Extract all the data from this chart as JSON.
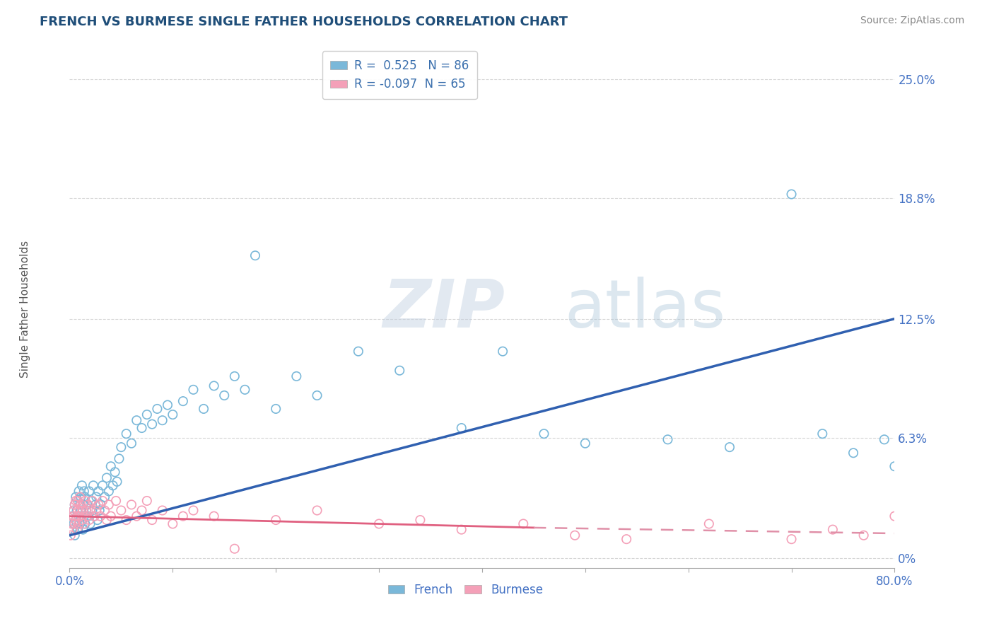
{
  "title": "FRENCH VS BURMESE SINGLE FATHER HOUSEHOLDS CORRELATION CHART",
  "source": "Source: ZipAtlas.com",
  "ylabel": "Single Father Households",
  "xlim": [
    0.0,
    0.8
  ],
  "ylim": [
    -0.005,
    0.265
  ],
  "yticks": [
    0.0,
    0.063,
    0.125,
    0.188,
    0.25
  ],
  "ytick_labels": [
    "0%",
    "6.3%",
    "12.5%",
    "18.8%",
    "25.0%"
  ],
  "xtick_labels_shown": [
    "0.0%",
    "80.0%"
  ],
  "xticks_shown": [
    0.0,
    0.8
  ],
  "french_color": "#7ab8d9",
  "burmese_color": "#f4a0b8",
  "french_R": 0.525,
  "french_N": 86,
  "burmese_R": -0.097,
  "burmese_N": 65,
  "watermark": "ZIPatlas",
  "title_color": "#1f4e79",
  "ylabel_color": "#555555",
  "tick_color": "#4472c4",
  "source_color": "#888888",
  "legend_R_color": "#3a6fad",
  "background_color": "#ffffff",
  "trend_french_color": "#3060b0",
  "trend_burmese_solid_color": "#e06080",
  "trend_burmese_dash_color": "#e090a8",
  "french_trend_x0": 0.0,
  "french_trend_x1": 0.8,
  "french_trend_y0": 0.012,
  "french_trend_y1": 0.125,
  "burmese_trend_x0": 0.0,
  "burmese_trend_x1": 0.45,
  "burmese_trend_x1_dash": 0.8,
  "burmese_trend_y0": 0.022,
  "burmese_trend_y1": 0.016,
  "burmese_trend_y1_dash": 0.013,
  "french_scatter_x": [
    0.002,
    0.003,
    0.004,
    0.004,
    0.005,
    0.005,
    0.006,
    0.006,
    0.007,
    0.007,
    0.008,
    0.008,
    0.009,
    0.009,
    0.01,
    0.01,
    0.011,
    0.011,
    0.012,
    0.012,
    0.013,
    0.013,
    0.014,
    0.014,
    0.015,
    0.015,
    0.016,
    0.017,
    0.018,
    0.019,
    0.02,
    0.021,
    0.022,
    0.023,
    0.024,
    0.025,
    0.026,
    0.027,
    0.028,
    0.029,
    0.03,
    0.032,
    0.034,
    0.036,
    0.038,
    0.04,
    0.042,
    0.044,
    0.046,
    0.048,
    0.05,
    0.055,
    0.06,
    0.065,
    0.07,
    0.075,
    0.08,
    0.085,
    0.09,
    0.095,
    0.1,
    0.11,
    0.12,
    0.13,
    0.14,
    0.15,
    0.16,
    0.17,
    0.18,
    0.2,
    0.22,
    0.24,
    0.28,
    0.32,
    0.38,
    0.42,
    0.46,
    0.5,
    0.58,
    0.64,
    0.7,
    0.73,
    0.76,
    0.79,
    0.8,
    0.81
  ],
  "french_scatter_y": [
    0.015,
    0.022,
    0.018,
    0.025,
    0.012,
    0.028,
    0.02,
    0.032,
    0.018,
    0.025,
    0.015,
    0.03,
    0.022,
    0.035,
    0.018,
    0.028,
    0.025,
    0.032,
    0.02,
    0.038,
    0.015,
    0.028,
    0.022,
    0.035,
    0.018,
    0.032,
    0.025,
    0.028,
    0.022,
    0.035,
    0.018,
    0.03,
    0.025,
    0.038,
    0.022,
    0.028,
    0.032,
    0.02,
    0.035,
    0.025,
    0.028,
    0.038,
    0.032,
    0.042,
    0.035,
    0.048,
    0.038,
    0.045,
    0.04,
    0.052,
    0.058,
    0.065,
    0.06,
    0.072,
    0.068,
    0.075,
    0.07,
    0.078,
    0.072,
    0.08,
    0.075,
    0.082,
    0.088,
    0.078,
    0.09,
    0.085,
    0.095,
    0.088,
    0.158,
    0.078,
    0.095,
    0.085,
    0.108,
    0.098,
    0.068,
    0.108,
    0.065,
    0.06,
    0.062,
    0.058,
    0.19,
    0.065,
    0.055,
    0.062,
    0.048,
    0.058
  ],
  "burmese_scatter_x": [
    0.001,
    0.002,
    0.003,
    0.004,
    0.004,
    0.005,
    0.005,
    0.006,
    0.006,
    0.007,
    0.007,
    0.008,
    0.008,
    0.009,
    0.009,
    0.01,
    0.01,
    0.011,
    0.012,
    0.013,
    0.014,
    0.015,
    0.016,
    0.017,
    0.018,
    0.019,
    0.02,
    0.022,
    0.024,
    0.026,
    0.028,
    0.03,
    0.032,
    0.034,
    0.036,
    0.038,
    0.04,
    0.045,
    0.05,
    0.055,
    0.06,
    0.065,
    0.07,
    0.075,
    0.08,
    0.09,
    0.1,
    0.11,
    0.12,
    0.14,
    0.16,
    0.2,
    0.24,
    0.3,
    0.34,
    0.38,
    0.44,
    0.49,
    0.54,
    0.62,
    0.7,
    0.74,
    0.77,
    0.8,
    0.81
  ],
  "burmese_scatter_y": [
    0.012,
    0.018,
    0.015,
    0.022,
    0.025,
    0.018,
    0.028,
    0.02,
    0.03,
    0.022,
    0.015,
    0.025,
    0.03,
    0.022,
    0.018,
    0.032,
    0.025,
    0.028,
    0.02,
    0.025,
    0.018,
    0.03,
    0.025,
    0.022,
    0.028,
    0.02,
    0.025,
    0.03,
    0.022,
    0.025,
    0.028,
    0.022,
    0.03,
    0.025,
    0.02,
    0.028,
    0.022,
    0.03,
    0.025,
    0.02,
    0.028,
    0.022,
    0.025,
    0.03,
    0.02,
    0.025,
    0.018,
    0.022,
    0.025,
    0.022,
    0.005,
    0.02,
    0.025,
    0.018,
    0.02,
    0.015,
    0.018,
    0.012,
    0.01,
    0.018,
    0.01,
    0.015,
    0.012,
    0.022,
    0.01
  ]
}
